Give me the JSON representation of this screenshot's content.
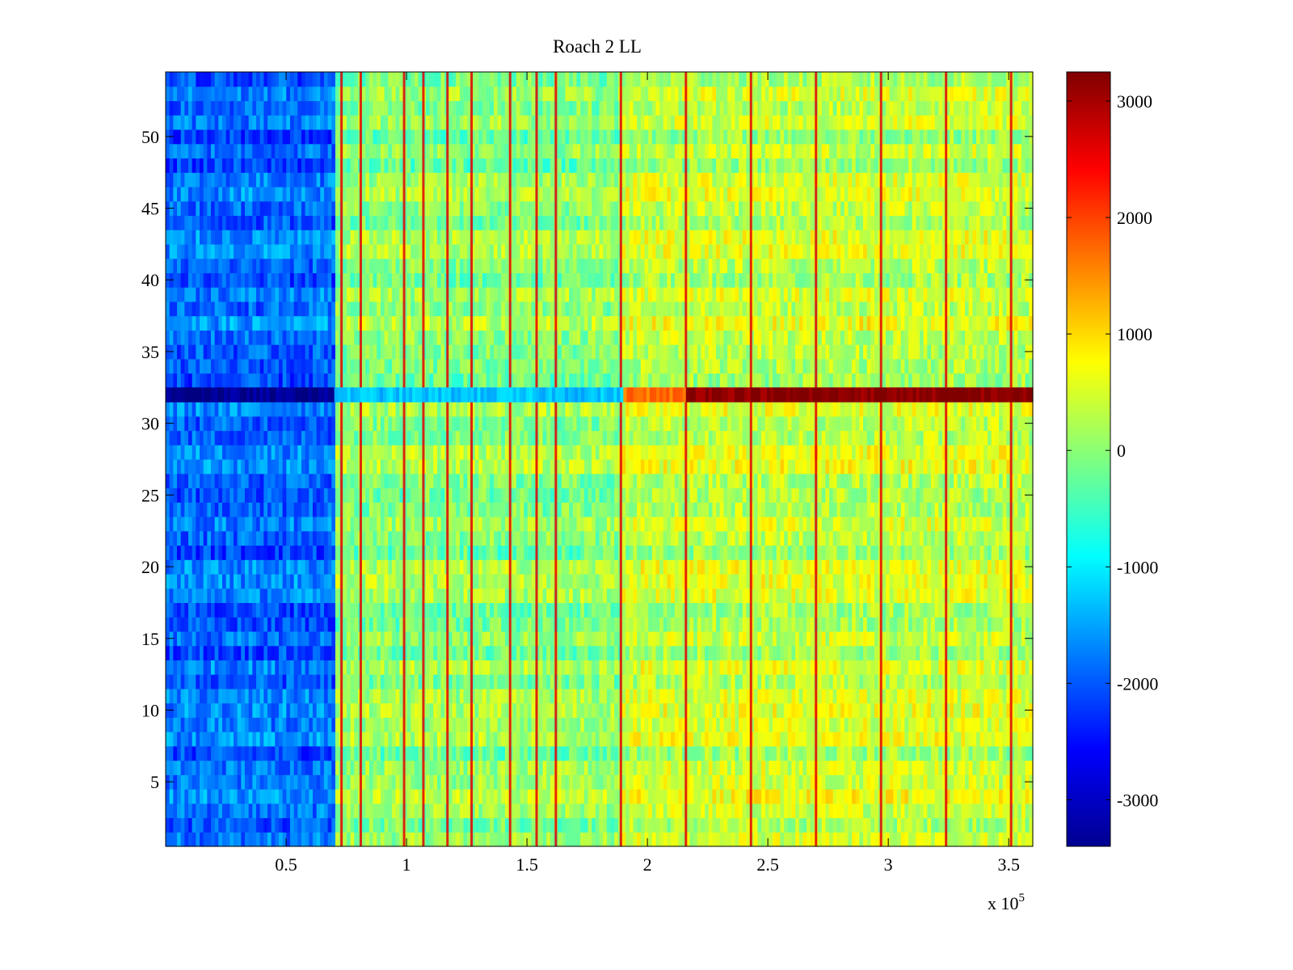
{
  "chart_data": {
    "type": "heatmap",
    "title": "Roach 2 LL",
    "xlabel": "",
    "ylabel": "",
    "x_exponent_label": "x 10",
    "x_exponent_power": "5",
    "xlim": [
      0,
      3.6
    ],
    "ylim": [
      0.5,
      54.5
    ],
    "x_ticks": [
      0.5,
      1,
      1.5,
      2,
      2.5,
      3,
      3.5
    ],
    "x_tick_labels": [
      "0.5",
      "1",
      "1.5",
      "2",
      "2.5",
      "3",
      "3.5"
    ],
    "y_ticks": [
      5,
      10,
      15,
      20,
      25,
      30,
      35,
      40,
      45,
      50
    ],
    "y_tick_labels": [
      "5",
      "10",
      "15",
      "20",
      "25",
      "30",
      "35",
      "40",
      "45",
      "50"
    ],
    "rows": 54,
    "colormap": "jet",
    "clim": [
      -3400,
      3250
    ],
    "colorbar_ticks": [
      3000,
      2000,
      1000,
      0,
      -1000,
      -2000,
      -3000
    ],
    "colorbar_tick_labels": [
      "3000",
      "2000",
      "1000",
      "0",
      "-1000",
      "-2000",
      "-3000"
    ],
    "segments": [
      {
        "x_range": [
          0.0,
          0.7
        ],
        "typical_value": -1900
      },
      {
        "x_range": [
          0.7,
          1.9
        ],
        "typical_value": 0
      },
      {
        "x_range": [
          1.9,
          3.6
        ],
        "typical_value": 350
      }
    ],
    "vertical_stripes_x": [
      0.73,
      0.81,
      0.99,
      1.07,
      1.17,
      1.27,
      1.43,
      1.54,
      1.62,
      1.89,
      2.16,
      2.43,
      2.7,
      2.97,
      3.24,
      3.51
    ],
    "highlighted_rows": [
      {
        "row": 32,
        "x_range": [
          0.0,
          0.7
        ],
        "value": -3300
      },
      {
        "row": 32,
        "x_range": [
          0.7,
          1.9
        ],
        "value": -1300
      },
      {
        "row": 32,
        "x_range": [
          1.9,
          2.16
        ],
        "value": 1700
      },
      {
        "row": 32,
        "x_range": [
          2.16,
          3.6
        ],
        "value": 3200
      }
    ]
  }
}
